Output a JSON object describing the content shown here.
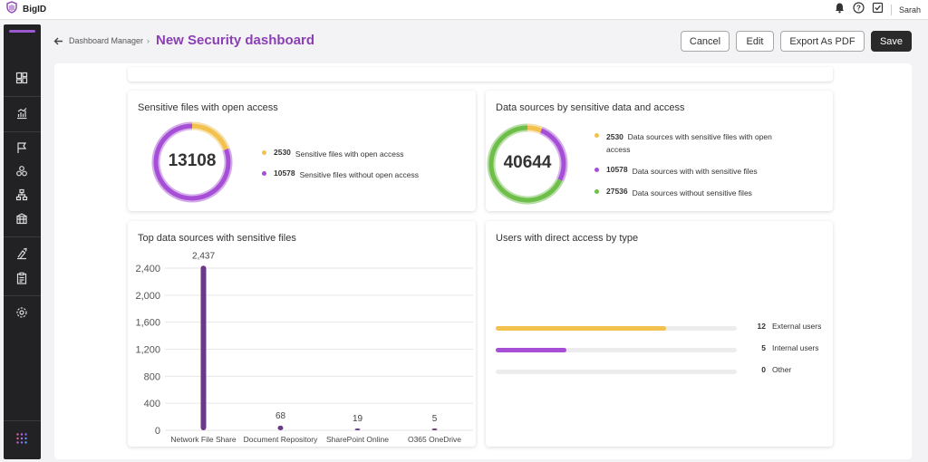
{
  "app": {
    "name": "BigID",
    "user": "Sarah"
  },
  "icons": {
    "logo": "bigid-logo-icon",
    "notifications": "bell-icon",
    "help": "help-icon",
    "tasks": "tasks-check-icon",
    "back": "arrow-left-icon",
    "chevron": "chevron-right-icon"
  },
  "sidebar": {
    "items": [
      {
        "name": "dashboard",
        "icon": "dashboard-icon"
      },
      {
        "name": "reports",
        "icon": "reports-icon"
      },
      {
        "name": "findings",
        "icon": "flag-icon"
      },
      {
        "name": "clusters",
        "icon": "clusters-icon"
      },
      {
        "name": "hierarchy",
        "icon": "hierarchy-icon"
      },
      {
        "name": "inventory",
        "icon": "inventory-icon"
      },
      {
        "name": "remediation",
        "icon": "remediation-icon"
      },
      {
        "name": "policies",
        "icon": "clipboard-icon"
      },
      {
        "name": "settings",
        "icon": "gear-icon"
      },
      {
        "name": "apps",
        "icon": "apps-grid-icon"
      }
    ]
  },
  "header": {
    "breadcrumb": "Dashboard Manager",
    "title": "New Security dashboard",
    "buttons": {
      "cancel": "Cancel",
      "edit": "Edit",
      "export": "Export As PDF",
      "save": "Save"
    }
  },
  "colors": {
    "yellow": "#f2c14e",
    "purple": "#a64fd6",
    "green": "#6ebe4a",
    "bar": "#6b3a86"
  },
  "cards": {
    "sensitive_files": {
      "title": "Sensitive files with open access",
      "total": "13108",
      "legend": [
        {
          "num": "2530",
          "label": "Sensitive files with open access",
          "value": 2530,
          "color": "#f2c14e"
        },
        {
          "num": "10578",
          "label": "Sensitive files without open access",
          "value": 10578,
          "color": "#a64fd6"
        }
      ]
    },
    "data_sources": {
      "title": "Data sources by sensitive data and access",
      "total": "40644",
      "legend": [
        {
          "num": "2530",
          "label": "Data sources with sensitive files with open",
          "label2": "access",
          "value": 2530,
          "color": "#f2c14e"
        },
        {
          "num": "10578",
          "label": "Data sources with with sensitive files",
          "value": 10578,
          "color": "#a64fd6"
        },
        {
          "num": "27536",
          "label": "Data sources without sensitive files",
          "value": 27536,
          "color": "#6ebe4a"
        }
      ]
    },
    "top_sources": {
      "title": "Top data sources with sensitive files"
    },
    "users": {
      "title": "Users with direct access by type",
      "rows": [
        {
          "num": "12",
          "label": "External users",
          "value": 12,
          "color": "#f2c14e"
        },
        {
          "num": "5",
          "label": "Internal users",
          "value": 5,
          "color": "#a64fd6"
        },
        {
          "num": "0",
          "label": "Other",
          "value": 0,
          "color": "#a64fd6"
        }
      ],
      "max": 17
    }
  },
  "chart_data": {
    "type": "bar",
    "title": "Top data sources with sensitive files",
    "categories": [
      "Network File Share",
      "Document Repository",
      "SharePoint Online",
      "O365 OneDrive"
    ],
    "values": [
      2437,
      68,
      19,
      5
    ],
    "data_labels": [
      "2,437",
      "68",
      "19",
      "5"
    ],
    "ylim": [
      0,
      2400
    ],
    "yticks": [
      0,
      400,
      800,
      1200,
      1600,
      2000,
      2400
    ],
    "ytick_labels": [
      "0",
      "400",
      "800",
      "1,200",
      "1,600",
      "2,000",
      "2,400"
    ],
    "grid": true,
    "color": "#6b3a86"
  }
}
